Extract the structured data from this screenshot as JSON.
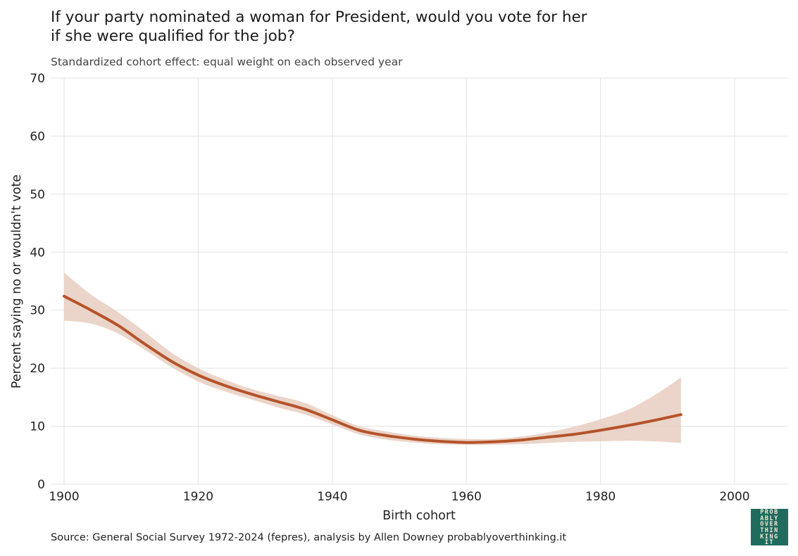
{
  "header": {
    "title": "If your party nominated a woman for President, would you vote for her\nif she were qualified for the job?",
    "subtitle": "Standardized cohort effect: equal weight on each observed year"
  },
  "footer": {
    "source": "Source: General Social Survey 1972-2024 (fepres), analysis by Allen Downey probablyoverthinking.it"
  },
  "logo": {
    "lines": [
      "PROB",
      "ABLY",
      "OVER",
      "THIN",
      "KING",
      "IT"
    ],
    "background": "#1f6b5e",
    "text_color": "#f1ead2"
  },
  "colors": {
    "line": "#b5532a",
    "band": "#e8cdbf",
    "grid": "#e3e3e3"
  },
  "chart_data": {
    "type": "line",
    "title": "If your party nominated a woman for President, would you vote for her if she were qualified for the job?",
    "subtitle": "Standardized cohort effect: equal weight on each observed year",
    "xlabel": "Birth cohort",
    "ylabel": "Percent saying no or wouldn't vote",
    "xlim": [
      1900,
      2008
    ],
    "ylim": [
      0,
      70
    ],
    "xticks": [
      1900,
      1920,
      1940,
      1960,
      1980,
      2000
    ],
    "yticks": [
      0,
      10,
      20,
      30,
      40,
      50,
      60,
      70
    ],
    "grid": true,
    "legend": "none",
    "x": [
      1900,
      1904,
      1908,
      1912,
      1916,
      1920,
      1924,
      1928,
      1932,
      1936,
      1940,
      1944,
      1948,
      1952,
      1956,
      1960,
      1964,
      1968,
      1972,
      1976,
      1980,
      1984,
      1988,
      1992
    ],
    "y": [
      32.4,
      30.0,
      27.4,
      24.2,
      21.2,
      18.8,
      17.0,
      15.5,
      14.2,
      12.9,
      11.1,
      9.3,
      8.4,
      7.8,
      7.4,
      7.2,
      7.3,
      7.6,
      8.1,
      8.6,
      9.3,
      10.1,
      11.0,
      12.0
    ],
    "lower": [
      28.2,
      27.7,
      26.0,
      23.2,
      20.2,
      17.7,
      16.0,
      14.6,
      13.2,
      12.0,
      10.3,
      8.6,
      7.7,
      7.2,
      6.9,
      6.8,
      6.8,
      6.9,
      7.1,
      7.3,
      7.4,
      7.5,
      7.4,
      7.1
    ],
    "upper": [
      36.5,
      32.7,
      29.7,
      26.3,
      22.7,
      20.0,
      18.0,
      16.4,
      15.2,
      14.0,
      11.9,
      10.0,
      9.1,
      8.4,
      8.0,
      7.8,
      7.8,
      8.2,
      8.9,
      9.9,
      11.2,
      12.8,
      15.3,
      18.4
    ]
  }
}
